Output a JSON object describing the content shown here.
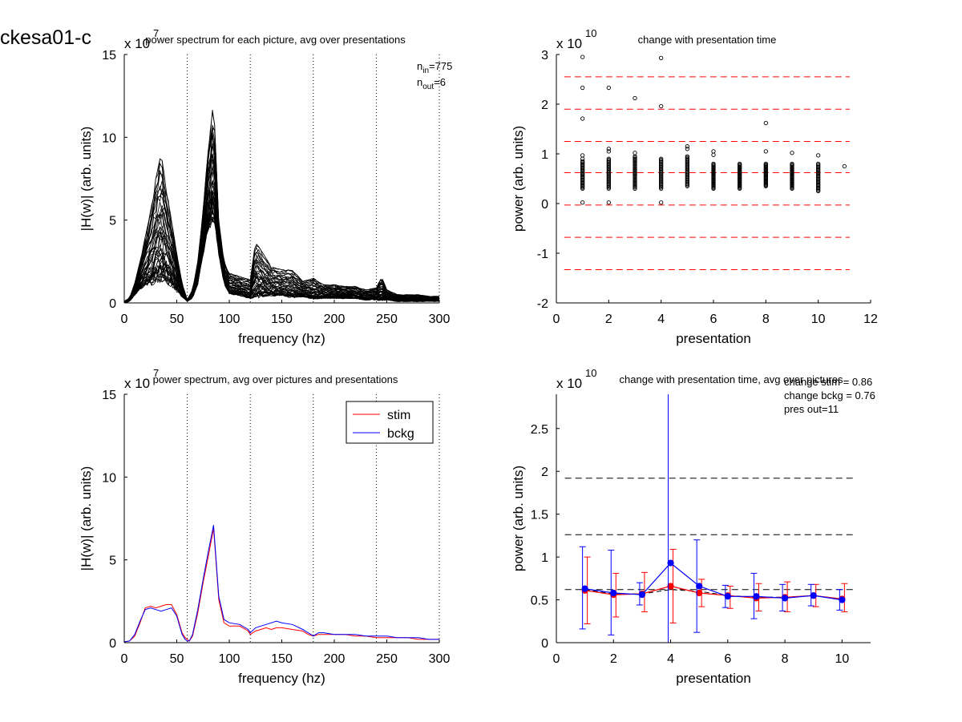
{
  "figure_title": "ckesa01-c",
  "colors": {
    "stim": "#ff0000",
    "bckg": "#0000ff",
    "dash_red": "#ff0000",
    "dash_black": "#000000",
    "trace": "#000000"
  },
  "chart_data": [
    {
      "id": "p1",
      "type": "line",
      "title": "power spectrum for each picture, avg over presentations",
      "xlabel": "frequency (hz)",
      "ylabel": "|H(w)| (arb. units)",
      "y_multiplier": "x 10",
      "y_exponent": "7",
      "xlim": [
        0,
        300
      ],
      "ylim": [
        0,
        15
      ],
      "xticks": [
        0,
        50,
        100,
        150,
        200,
        250,
        300
      ],
      "yticks": [
        0,
        5,
        10,
        15
      ],
      "vlines": [
        60,
        120,
        180,
        240,
        300
      ],
      "annotation": {
        "n_in_label": "n",
        "n_in_sub": "in",
        "n_in_value": "=775",
        "n_out_label": "n",
        "n_out_sub": "out",
        "n_out_value": "=6"
      },
      "envelope": {
        "x": [
          0,
          5,
          10,
          15,
          20,
          25,
          30,
          35,
          40,
          45,
          50,
          55,
          60,
          65,
          70,
          75,
          80,
          85,
          90,
          95,
          100,
          110,
          120,
          125,
          130,
          140,
          150,
          160,
          170,
          180,
          190,
          200,
          210,
          220,
          230,
          240,
          245,
          250,
          260,
          270,
          280,
          290,
          300
        ],
        "lower": [
          0,
          0.1,
          0.5,
          0.9,
          1.2,
          1.3,
          1.5,
          1.6,
          1.5,
          1.2,
          0.8,
          0.4,
          0.1,
          0.3,
          1.2,
          3.0,
          4.5,
          5.5,
          3.0,
          1.2,
          0.6,
          0.5,
          0.3,
          0.4,
          0.5,
          0.5,
          0.5,
          0.4,
          0.4,
          0.3,
          0.3,
          0.3,
          0.3,
          0.3,
          0.2,
          0.2,
          0.2,
          0.2,
          0.1,
          0.1,
          0.1,
          0.1,
          0.1
        ],
        "upper": [
          0.1,
          0.3,
          1.2,
          2.5,
          4.0,
          5.5,
          7.5,
          9.0,
          7.0,
          5.0,
          3.0,
          1.2,
          0.2,
          0.8,
          2.5,
          5.5,
          9.5,
          12.2,
          5.0,
          2.5,
          1.8,
          1.6,
          1.4,
          3.7,
          3.2,
          2.2,
          2.0,
          2.0,
          1.3,
          1.5,
          1.1,
          1.1,
          1.0,
          1.0,
          0.8,
          0.9,
          1.6,
          0.8,
          0.5,
          0.5,
          0.5,
          0.4,
          0.4
        ]
      }
    },
    {
      "id": "p2",
      "type": "scatter",
      "title": "change with presentation time",
      "xlabel": "presentation",
      "ylabel": "power (arb. units)",
      "y_multiplier": "x 10",
      "y_exponent": "10",
      "xlim": [
        0,
        12
      ],
      "ylim": [
        -2,
        3
      ],
      "xticks": [
        0,
        2,
        4,
        6,
        8,
        10,
        12
      ],
      "yticks": [
        -2,
        -1,
        0,
        1,
        2,
        3
      ],
      "hlines_red_dashed": [
        2.55,
        1.9,
        1.25,
        0.62,
        -0.03,
        -0.68,
        -1.33
      ],
      "dense_range": [
        [
          0.3,
          0.85
        ],
        [
          0.3,
          0.9
        ],
        [
          0.3,
          0.95
        ],
        [
          0.3,
          0.9
        ],
        [
          0.35,
          0.95
        ],
        [
          0.3,
          0.8
        ],
        [
          0.3,
          0.8
        ],
        [
          0.35,
          0.8
        ],
        [
          0.3,
          0.8
        ],
        [
          0.25,
          0.8
        ]
      ],
      "outliers": [
        {
          "x": 1,
          "y": 2.95
        },
        {
          "x": 1,
          "y": 2.33
        },
        {
          "x": 1,
          "y": 1.71
        },
        {
          "x": 1,
          "y": 0.97
        },
        {
          "x": 1,
          "y": 0.9
        },
        {
          "x": 1,
          "y": 0.02
        },
        {
          "x": 2,
          "y": 2.33
        },
        {
          "x": 2,
          "y": 1.1
        },
        {
          "x": 2,
          "y": 1.05
        },
        {
          "x": 2,
          "y": 0.02
        },
        {
          "x": 3,
          "y": 2.12
        },
        {
          "x": 3,
          "y": 1.02
        },
        {
          "x": 4,
          "y": 2.93
        },
        {
          "x": 4,
          "y": 1.96
        },
        {
          "x": 4,
          "y": 0.02
        },
        {
          "x": 5,
          "y": 1.15
        },
        {
          "x": 5,
          "y": 1.1
        },
        {
          "x": 6,
          "y": 1.05
        },
        {
          "x": 6,
          "y": 0.98
        },
        {
          "x": 8,
          "y": 1.62
        },
        {
          "x": 8,
          "y": 1.05
        },
        {
          "x": 9,
          "y": 1.02
        },
        {
          "x": 10,
          "y": 0.97
        },
        {
          "x": 11,
          "y": 0.75
        }
      ]
    },
    {
      "id": "p3",
      "type": "line",
      "title": "power spectrum, avg over pictures and presentations",
      "xlabel": "frequency (hz)",
      "ylabel": "|H(w)| (arb. units)",
      "y_multiplier": "x 10",
      "y_exponent": "7",
      "xlim": [
        0,
        300
      ],
      "ylim": [
        0,
        15
      ],
      "xticks": [
        0,
        50,
        100,
        150,
        200,
        250,
        300
      ],
      "yticks": [
        0,
        5,
        10,
        15
      ],
      "vlines": [
        60,
        120,
        180,
        240,
        300
      ],
      "legend_position": "top-right",
      "x": [
        0,
        5,
        10,
        15,
        20,
        25,
        30,
        35,
        40,
        45,
        50,
        55,
        58,
        60,
        62,
        65,
        70,
        75,
        80,
        85,
        90,
        95,
        100,
        110,
        118,
        120,
        125,
        130,
        135,
        140,
        145,
        150,
        160,
        170,
        175,
        180,
        185,
        190,
        200,
        210,
        220,
        230,
        240,
        250,
        260,
        270,
        280,
        290,
        300
      ],
      "series": [
        {
          "name": "stim",
          "color": "#ff0000",
          "values": [
            0.05,
            0.1,
            0.4,
            1.2,
            2.1,
            2.2,
            2.1,
            2.2,
            2.3,
            2.3,
            1.7,
            0.6,
            0.3,
            0.2,
            0.1,
            0.4,
            1.8,
            3.6,
            5.2,
            6.9,
            2.6,
            1.2,
            1.0,
            1.0,
            0.7,
            0.5,
            0.7,
            0.8,
            0.9,
            0.8,
            0.9,
            0.9,
            0.8,
            0.7,
            0.5,
            0.4,
            0.5,
            0.5,
            0.5,
            0.5,
            0.4,
            0.4,
            0.3,
            0.3,
            0.3,
            0.3,
            0.2,
            0.2,
            0.2
          ]
        },
        {
          "name": "bckg",
          "color": "#0000ff",
          "values": [
            0.05,
            0.1,
            0.5,
            1.3,
            2.0,
            2.1,
            2.0,
            1.9,
            2.0,
            2.1,
            1.6,
            0.5,
            0.2,
            0.1,
            0.1,
            0.5,
            2.0,
            3.8,
            5.5,
            7.1,
            2.8,
            1.4,
            1.2,
            1.1,
            0.8,
            0.6,
            0.9,
            1.0,
            1.1,
            1.2,
            1.3,
            1.2,
            1.1,
            0.8,
            0.6,
            0.4,
            0.6,
            0.6,
            0.5,
            0.5,
            0.5,
            0.4,
            0.4,
            0.4,
            0.3,
            0.3,
            0.3,
            0.2,
            0.2
          ]
        }
      ]
    },
    {
      "id": "p4",
      "type": "line",
      "title": "change with presentation time, avg over pictures",
      "xlabel": "presentation",
      "ylabel": "power (arb. units)",
      "y_multiplier": "x 10",
      "y_exponent": "10",
      "xlim": [
        0,
        11
      ],
      "ylim": [
        0,
        2.9
      ],
      "xticks": [
        0,
        2,
        4,
        6,
        8,
        10
      ],
      "yticks": [
        0,
        0.5,
        1,
        1.5,
        2,
        2.5
      ],
      "ytick_labels": [
        "0",
        "0.5",
        "1",
        "1.5",
        "2",
        "2.5"
      ],
      "hlines_black_dashed": [
        1.92,
        1.26,
        0.62
      ],
      "annotations": [
        "change stim = 0.86",
        "change bckg = 0.76",
        "pres out=11"
      ],
      "x": [
        1,
        2,
        3,
        4,
        5,
        6,
        7,
        8,
        9,
        10
      ],
      "series": [
        {
          "name": "stim",
          "color": "#ff0000",
          "values": [
            0.61,
            0.56,
            0.57,
            0.66,
            0.58,
            0.55,
            0.52,
            0.53,
            0.55,
            0.51
          ],
          "err_low": [
            0.22,
            0.3,
            0.36,
            0.23,
            0.42,
            0.4,
            0.37,
            0.36,
            0.42,
            0.36
          ],
          "err_high": [
            1.0,
            0.81,
            0.82,
            1.09,
            0.74,
            0.66,
            0.69,
            0.71,
            0.68,
            0.69
          ]
        },
        {
          "name": "bckg",
          "color": "#0000ff",
          "values": [
            0.63,
            0.58,
            0.56,
            0.93,
            0.66,
            0.54,
            0.54,
            0.52,
            0.55,
            0.5
          ],
          "err_low": [
            0.16,
            0.09,
            0.44,
            0.0,
            0.12,
            0.41,
            0.28,
            0.37,
            0.43,
            0.38
          ],
          "err_high": [
            1.12,
            1.08,
            0.7,
            2.9,
            1.2,
            0.67,
            0.81,
            0.68,
            0.68,
            0.62
          ]
        },
        {
          "name": "",
          "color": "#000000",
          "values": [
            0.62,
            0.57,
            0.57,
            0.62,
            0.6,
            0.55,
            0.53,
            0.53,
            0.55,
            0.51
          ]
        }
      ]
    }
  ]
}
